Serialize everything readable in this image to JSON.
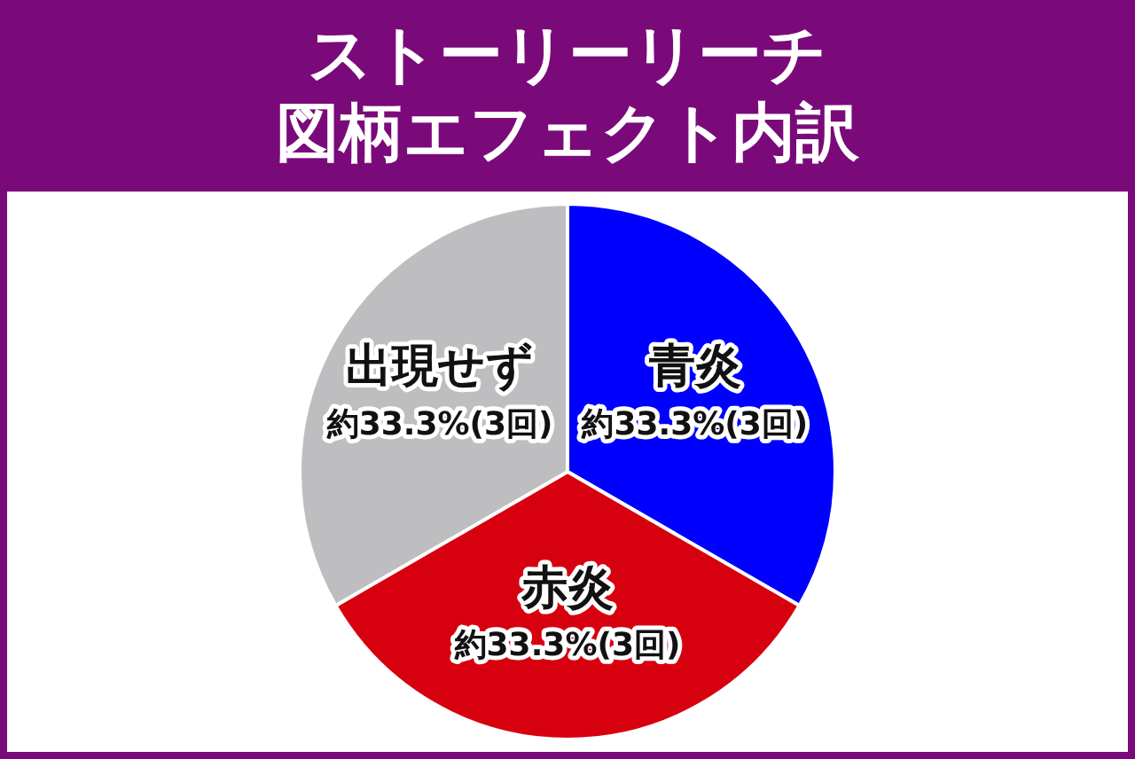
{
  "chart_data": {
    "type": "pie",
    "title": "ストーリーリーチ",
    "subtitle": "図柄エフェクト内訳",
    "categories": [
      "青炎",
      "赤炎",
      "出現せず"
    ],
    "values": [
      33.3,
      33.3,
      33.3
    ],
    "value_labels": [
      "約33.3%(3回)",
      "約33.3%(3回)",
      "約33.3%(3回)"
    ],
    "colors": [
      "#0000ff",
      "#d7000f",
      "#bebec0"
    ],
    "legend": false
  }
}
